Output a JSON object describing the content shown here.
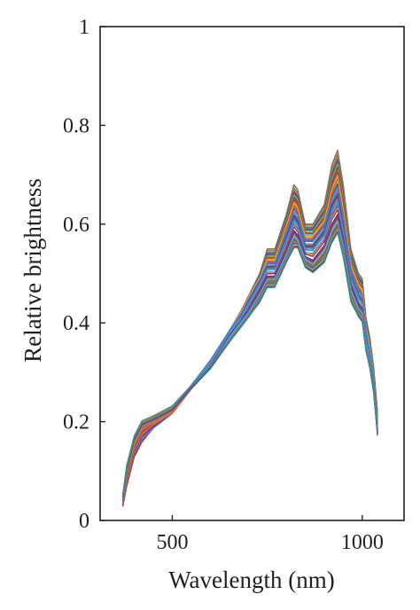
{
  "chart_data": {
    "type": "line",
    "title": "",
    "xlabel": "Wavelength (nm)",
    "ylabel": "Relative brightness",
    "xlim": [
      310,
      1110
    ],
    "ylim": [
      0,
      1
    ],
    "xticks": [
      500,
      1000
    ],
    "xtick_labels": [
      "500",
      "1000"
    ],
    "yticks": [
      0,
      0.2,
      0.4,
      0.6,
      0.8,
      1
    ],
    "ytick_labels": [
      "0",
      "0.2",
      "0.4",
      "0.6",
      "0.8",
      "1"
    ],
    "grid": false,
    "legend": "none",
    "series_count": 80,
    "x": [
      370,
      380,
      400,
      420,
      450,
      500,
      550,
      600,
      650,
      680,
      700,
      730,
      750,
      770,
      800,
      820,
      830,
      850,
      870,
      900,
      920,
      935,
      950,
      970,
      990,
      1000,
      1010,
      1020,
      1030,
      1040
    ],
    "representative_series": [
      {
        "values": [
          0.03,
          0.07,
          0.13,
          0.16,
          0.19,
          0.22,
          0.27,
          0.32,
          0.38,
          0.42,
          0.45,
          0.5,
          0.55,
          0.55,
          0.62,
          0.68,
          0.67,
          0.6,
          0.6,
          0.64,
          0.72,
          0.75,
          0.68,
          0.55,
          0.5,
          0.49,
          0.41,
          0.37,
          0.31,
          0.22
        ]
      },
      {
        "values": [
          0.04,
          0.08,
          0.14,
          0.17,
          0.19,
          0.22,
          0.27,
          0.32,
          0.38,
          0.42,
          0.45,
          0.49,
          0.53,
          0.53,
          0.6,
          0.65,
          0.64,
          0.58,
          0.58,
          0.61,
          0.68,
          0.71,
          0.64,
          0.52,
          0.48,
          0.47,
          0.39,
          0.35,
          0.29,
          0.2
        ]
      },
      {
        "values": [
          0.05,
          0.09,
          0.15,
          0.18,
          0.2,
          0.22,
          0.27,
          0.32,
          0.38,
          0.41,
          0.44,
          0.48,
          0.51,
          0.51,
          0.57,
          0.61,
          0.6,
          0.55,
          0.55,
          0.58,
          0.63,
          0.65,
          0.59,
          0.49,
          0.45,
          0.44,
          0.37,
          0.33,
          0.28,
          0.18
        ]
      },
      {
        "values": [
          0.05,
          0.1,
          0.16,
          0.19,
          0.2,
          0.22,
          0.27,
          0.31,
          0.37,
          0.4,
          0.42,
          0.46,
          0.49,
          0.49,
          0.54,
          0.58,
          0.57,
          0.53,
          0.52,
          0.55,
          0.59,
          0.61,
          0.56,
          0.47,
          0.43,
          0.42,
          0.36,
          0.32,
          0.27,
          0.18
        ]
      },
      {
        "values": [
          0.05,
          0.11,
          0.17,
          0.2,
          0.21,
          0.23,
          0.27,
          0.31,
          0.36,
          0.39,
          0.41,
          0.44,
          0.47,
          0.47,
          0.52,
          0.55,
          0.55,
          0.51,
          0.5,
          0.52,
          0.56,
          0.58,
          0.53,
          0.44,
          0.41,
          0.4,
          0.34,
          0.31,
          0.26,
          0.18
        ]
      }
    ],
    "colors": [
      "#1f5fbf",
      "#d95319",
      "#edb120",
      "#7e2f8e",
      "#77ac30",
      "#4dbeee",
      "#a2142f",
      "#2a9d8f",
      "#e76f51",
      "#3a86ff",
      "#8d6e63",
      "#c0392b"
    ]
  }
}
